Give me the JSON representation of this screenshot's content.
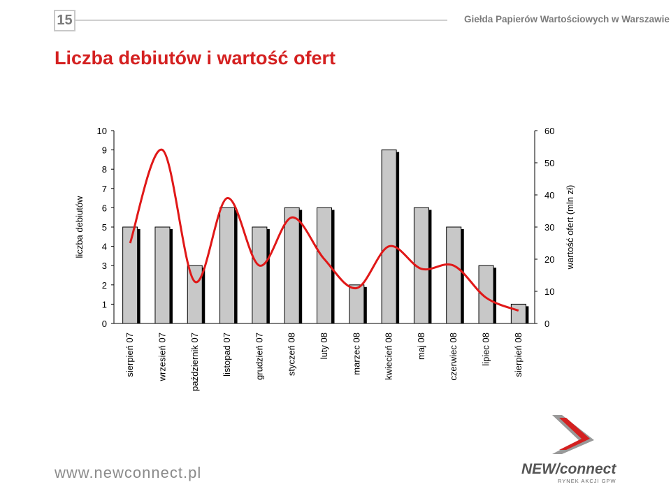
{
  "header": {
    "page_number": "15",
    "organization": "Giełda Papierów Wartościowych w Warszawie",
    "title": "Liczba debiutów i wartość ofert"
  },
  "chart_data": {
    "type": "bar",
    "categories": [
      "sierpień 07",
      "wrzesień 07",
      "październik 07",
      "listopad 07",
      "grudzień 07",
      "styczeń 08",
      "luty 08",
      "marzec 08",
      "kwiecień 08",
      "maj 08",
      "czerwiec 08",
      "lipiec 08",
      "sierpień 08"
    ],
    "series": [
      {
        "name": "liczba debiutów",
        "type": "bar",
        "axis": "left",
        "values": [
          5,
          5,
          3,
          6,
          5,
          6,
          6,
          2,
          9,
          6,
          5,
          3,
          1
        ]
      },
      {
        "name": "wartość ofert (mln zł)",
        "type": "line",
        "axis": "right",
        "values": [
          25,
          54,
          13,
          39,
          18,
          33,
          20,
          11,
          24,
          17,
          18,
          8,
          4
        ]
      }
    ],
    "ylabel": "liczba debiutów",
    "y2label": "wartość ofert (mln zł)",
    "ylim": [
      0,
      10
    ],
    "y2lim": [
      0,
      60
    ],
    "yticks": [
      "0",
      "1",
      "2",
      "3",
      "4",
      "5",
      "6",
      "7",
      "8",
      "9",
      "10"
    ],
    "y2ticks": [
      "0",
      "10",
      "20",
      "30",
      "40",
      "50",
      "60"
    ],
    "grid": false,
    "colors": {
      "bar": "#c8c8c8",
      "bar_shadow": "#000000",
      "line": "#e01818"
    }
  },
  "footer": {
    "url": "www.newconnect.pl",
    "logo": "NEW/connect",
    "logo_sub": "RYNEK AKCJI GPW"
  }
}
